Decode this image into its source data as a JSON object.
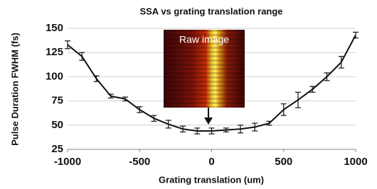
{
  "chart_data": {
    "type": "line",
    "title": "SSA vs grating translation range",
    "xlabel": "Grating translation (um)",
    "ylabel": "Pulse Duration FWHM (fs)",
    "annotation": "Raw image",
    "x": [
      -1000,
      -900,
      -800,
      -700,
      -600,
      -500,
      -400,
      -300,
      -200,
      -100,
      0,
      100,
      200,
      300,
      400,
      500,
      600,
      700,
      800,
      900,
      1000
    ],
    "values": [
      133,
      121,
      98,
      80,
      77,
      66,
      57,
      51,
      46,
      44,
      44,
      45,
      46,
      48,
      52,
      66,
      76,
      87,
      100,
      115,
      143
    ],
    "errors": [
      4,
      4,
      3,
      2,
      2,
      3,
      3,
      4,
      3,
      3,
      3,
      2,
      4,
      4,
      2,
      6,
      8,
      3,
      4,
      6,
      3
    ],
    "color": "#111111",
    "xlim": [
      -1000,
      1000
    ],
    "xticks": [
      -1000,
      -500,
      0,
      500,
      1000
    ],
    "ylim": [
      25,
      150
    ],
    "yticks": [
      25,
      50,
      75,
      100,
      125,
      150
    ],
    "grid": true
  }
}
